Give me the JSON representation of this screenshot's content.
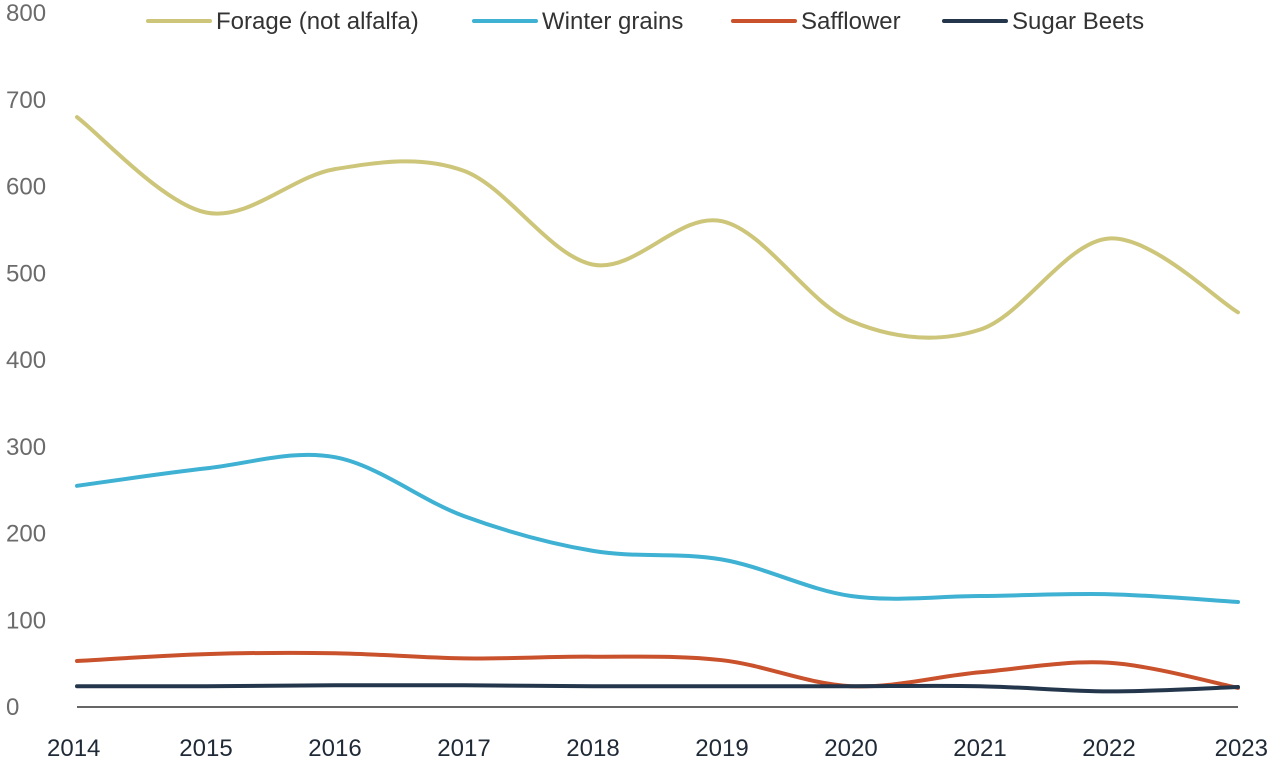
{
  "chart_data": {
    "type": "line",
    "title": "",
    "xlabel": "",
    "ylabel": "",
    "x": [
      "2014",
      "2015",
      "2016",
      "2017",
      "2018",
      "2019",
      "2020",
      "2021",
      "2022",
      "2023"
    ],
    "ylim": [
      0,
      800
    ],
    "yticks": [
      "0",
      "100",
      "200",
      "300",
      "400",
      "500",
      "600",
      "700",
      "800"
    ],
    "grid": false,
    "legend_position": "top",
    "series": [
      {
        "name": "Forage (not alfalfa)",
        "color": "#cdc67a",
        "values": [
          680,
          570,
          620,
          618,
          510,
          560,
          445,
          435,
          540,
          455
        ]
      },
      {
        "name": "Winter grains",
        "color": "#3fb1d3",
        "values": [
          255,
          275,
          288,
          220,
          180,
          170,
          128,
          128,
          130,
          121
        ]
      },
      {
        "name": "Safflower",
        "color": "#c9522d",
        "values": [
          53,
          61,
          62,
          56,
          58,
          54,
          24,
          40,
          51,
          22
        ]
      },
      {
        "name": "Sugar Beets",
        "color": "#24364b",
        "values": [
          24,
          24,
          25,
          25,
          24,
          24,
          24,
          24,
          18,
          23
        ]
      }
    ]
  }
}
